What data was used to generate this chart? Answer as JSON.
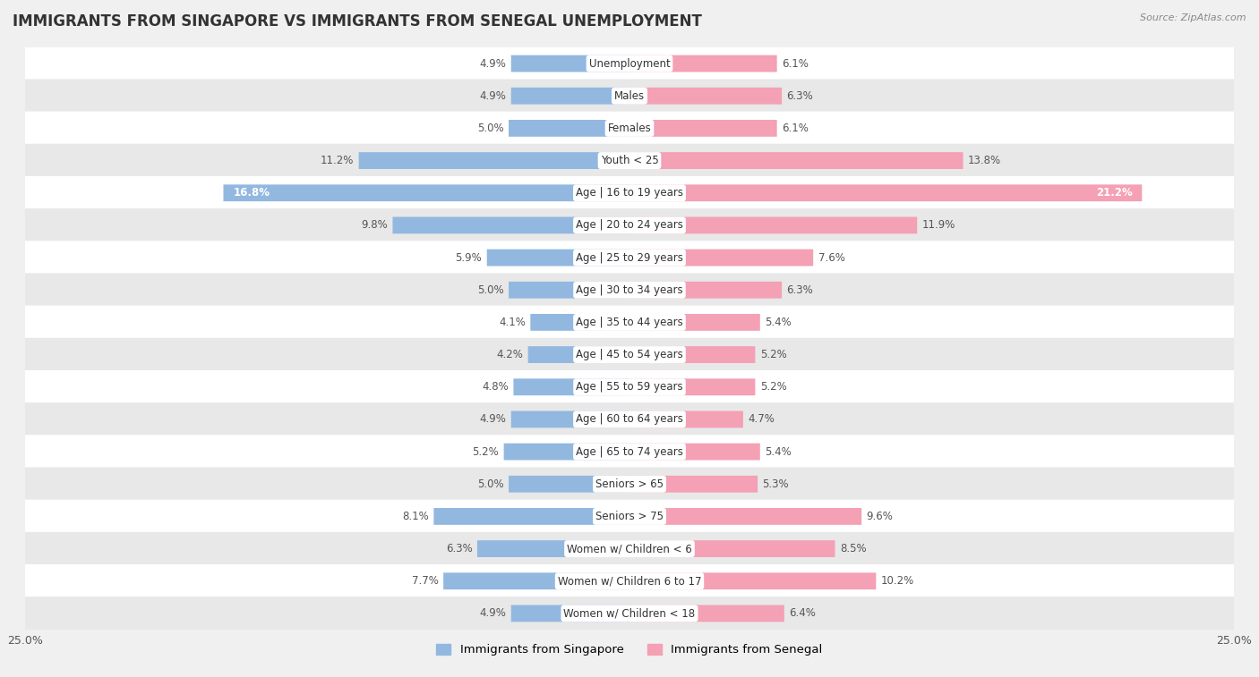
{
  "title": "IMMIGRANTS FROM SINGAPORE VS IMMIGRANTS FROM SENEGAL UNEMPLOYMENT",
  "source": "Source: ZipAtlas.com",
  "categories": [
    "Unemployment",
    "Males",
    "Females",
    "Youth < 25",
    "Age | 16 to 19 years",
    "Age | 20 to 24 years",
    "Age | 25 to 29 years",
    "Age | 30 to 34 years",
    "Age | 35 to 44 years",
    "Age | 45 to 54 years",
    "Age | 55 to 59 years",
    "Age | 60 to 64 years",
    "Age | 65 to 74 years",
    "Seniors > 65",
    "Seniors > 75",
    "Women w/ Children < 6",
    "Women w/ Children 6 to 17",
    "Women w/ Children < 18"
  ],
  "singapore_values": [
    4.9,
    4.9,
    5.0,
    11.2,
    16.8,
    9.8,
    5.9,
    5.0,
    4.1,
    4.2,
    4.8,
    4.9,
    5.2,
    5.0,
    8.1,
    6.3,
    7.7,
    4.9
  ],
  "senegal_values": [
    6.1,
    6.3,
    6.1,
    13.8,
    21.2,
    11.9,
    7.6,
    6.3,
    5.4,
    5.2,
    5.2,
    4.7,
    5.4,
    5.3,
    9.6,
    8.5,
    10.2,
    6.4
  ],
  "singapore_color": "#92b8e0",
  "senegal_color": "#f4a0b5",
  "singapore_label": "Immigrants from Singapore",
  "senegal_label": "Immigrants from Senegal",
  "xlim": 25.0,
  "background_color": "#f0f0f0",
  "row_colors_light": [
    "#ffffff",
    "#e8e8e8"
  ],
  "title_fontsize": 12,
  "label_fontsize": 8.5,
  "value_fontsize": 8.5
}
